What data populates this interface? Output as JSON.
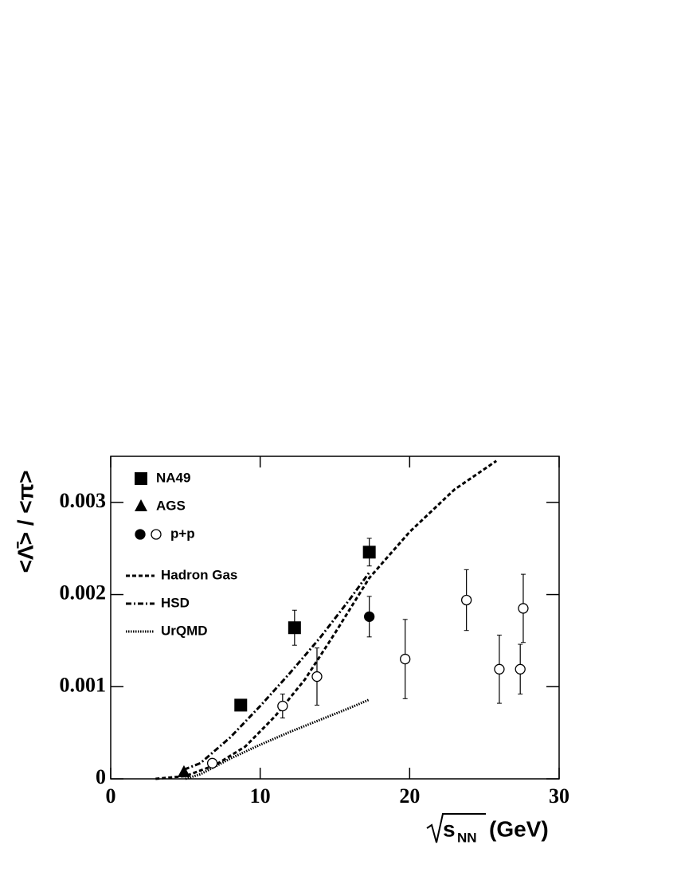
{
  "chart_data": {
    "type": "scatter",
    "ylabel": "<Λ̄> / <π>",
    "xlabel_parts": [
      "s",
      "NN",
      "(GeV)"
    ],
    "xlim": [
      0,
      30
    ],
    "xticks": [
      0,
      10,
      20,
      30
    ],
    "ylim": [
      0,
      0.0035
    ],
    "yticks": [
      0,
      0.001,
      0.002,
      0.003
    ],
    "series": [
      {
        "name": "NA49",
        "marker": "square",
        "color": "#000000",
        "x": [
          8.7,
          12.3,
          17.3
        ],
        "values": [
          0.0008,
          0.00164,
          0.00246
        ],
        "errors": [
          null,
          0.00019,
          0.00015
        ]
      },
      {
        "name": "AGS",
        "marker": "triangle",
        "color": "#000000",
        "x": [
          4.9
        ],
        "values": [
          7e-05
        ],
        "errors": [
          null
        ]
      },
      {
        "name": "p+p",
        "marker": "circle",
        "color": "#000000",
        "x": [
          17.3,
          6.8,
          11.5,
          13.8,
          19.7,
          23.8,
          26.0,
          27.4,
          27.6
        ],
        "values": [
          0.00176,
          0.00017,
          0.00079,
          0.00111,
          0.0013,
          0.00194,
          0.00119,
          0.00119,
          0.00185
        ],
        "errors": [
          0.00022,
          null,
          0.00013,
          0.00031,
          0.00043,
          0.00033,
          0.00037,
          0.00027,
          0.00037
        ],
        "filled": [
          true,
          false,
          false,
          false,
          false,
          false,
          false,
          false,
          false
        ]
      }
    ],
    "curves": [
      {
        "name": "Hadron Gas",
        "style": "dashed",
        "color": "#000000",
        "x": [
          3,
          5,
          7,
          9,
          11,
          13,
          15,
          17.3,
          20,
          23,
          25.8
        ],
        "values": [
          0,
          3e-05,
          0.00015,
          0.00035,
          0.00068,
          0.00108,
          0.00158,
          0.00218,
          0.00268,
          0.00314,
          0.00345
        ]
      },
      {
        "name": "HSD",
        "style": "dashdot",
        "color": "#000000",
        "x": [
          4.9,
          6,
          8,
          10,
          12,
          14,
          16,
          17.3
        ],
        "values": [
          0.0001,
          0.00017,
          0.00045,
          0.00079,
          0.00115,
          0.00153,
          0.00195,
          0.00224
        ]
      },
      {
        "name": "UrQMD",
        "style": "dotted",
        "color": "#000000",
        "x": [
          5,
          6,
          8,
          10,
          12,
          14,
          16,
          17.3
        ],
        "values": [
          0,
          5e-05,
          0.00022,
          0.00037,
          0.00051,
          0.00064,
          0.00077,
          0.00086
        ]
      }
    ]
  }
}
